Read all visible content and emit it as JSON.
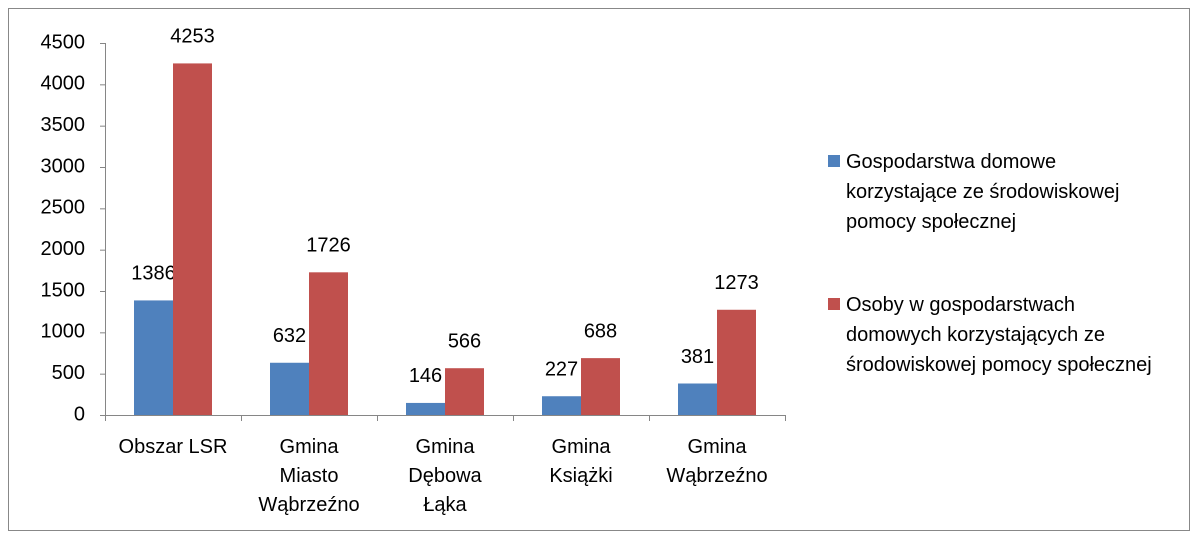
{
  "chart_data": {
    "type": "bar",
    "categories": [
      "Obszar LSR",
      "Gmina\nMiasto\nWąbrzeźno",
      "Gmina\nDębowa\nŁąka",
      "Gmina\nKsiążki",
      "Gmina\nWąbrzeźno"
    ],
    "series": [
      {
        "name": "Gospodarstwa domowe korzystające ze środowiskowej pomocy społecznej",
        "color": "#4f81bd",
        "values": [
          1386,
          632,
          146,
          227,
          381
        ]
      },
      {
        "name": "Osoby w gospodarstwach domowych korzystających ze środowiskowej pomocy społecznej",
        "color": "#c0504d",
        "values": [
          4253,
          1726,
          566,
          688,
          1273
        ]
      }
    ],
    "ylim": [
      0,
      4500
    ],
    "yticks": [
      0,
      500,
      1000,
      1500,
      2000,
      2500,
      3000,
      3500,
      4000,
      4500
    ],
    "grid": false,
    "legend": "right"
  }
}
